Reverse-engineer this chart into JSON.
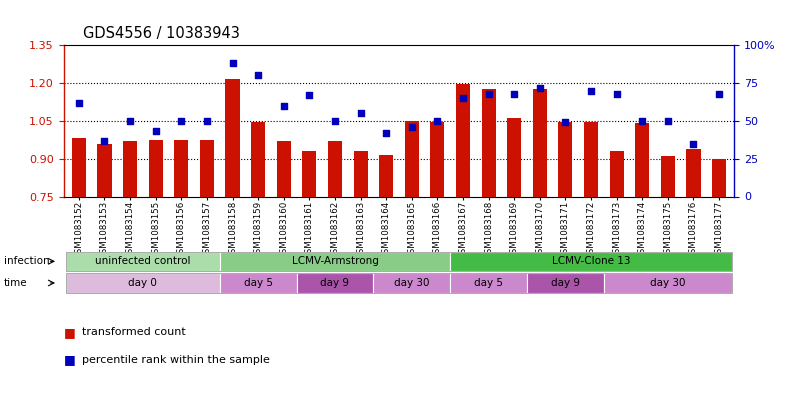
{
  "title": "GDS4556 / 10383943",
  "samples": [
    "GSM1083152",
    "GSM1083153",
    "GSM1083154",
    "GSM1083155",
    "GSM1083156",
    "GSM1083157",
    "GSM1083158",
    "GSM1083159",
    "GSM1083160",
    "GSM1083161",
    "GSM1083162",
    "GSM1083163",
    "GSM1083164",
    "GSM1083165",
    "GSM1083166",
    "GSM1083167",
    "GSM1083168",
    "GSM1083169",
    "GSM1083170",
    "GSM1083171",
    "GSM1083172",
    "GSM1083173",
    "GSM1083174",
    "GSM1083175",
    "GSM1083176",
    "GSM1083177"
  ],
  "bar_values": [
    0.98,
    0.96,
    0.97,
    0.975,
    0.975,
    0.975,
    1.215,
    1.045,
    0.97,
    0.93,
    0.97,
    0.93,
    0.915,
    1.05,
    1.045,
    1.195,
    1.175,
    1.06,
    1.175,
    1.045,
    1.045,
    0.93,
    1.04,
    0.91,
    0.94,
    0.9
  ],
  "percentile_values": [
    62,
    37,
    50,
    43,
    50,
    50,
    88,
    80,
    60,
    67,
    50,
    55,
    42,
    46,
    50,
    65,
    68,
    68,
    72,
    49,
    70,
    68,
    50,
    50,
    35,
    68
  ],
  "ylim_left": [
    0.75,
    1.35
  ],
  "ylim_right": [
    0,
    100
  ],
  "bar_color": "#cc1100",
  "dot_color": "#0000bb",
  "left_yticks": [
    0.75,
    0.9,
    1.05,
    1.2,
    1.35
  ],
  "right_yticks": [
    0,
    25,
    50,
    75,
    100
  ],
  "right_yticklabels": [
    "0",
    "25",
    "50",
    "75",
    "100%"
  ],
  "gridline_values": [
    0.9,
    1.05,
    1.2
  ],
  "infection_groups": [
    {
      "label": "uninfected control",
      "start": 0,
      "end": 6,
      "color": "#aaddaa"
    },
    {
      "label": "LCMV-Armstrong",
      "start": 6,
      "end": 15,
      "color": "#88cc88"
    },
    {
      "label": "LCMV-Clone 13",
      "start": 15,
      "end": 26,
      "color": "#44bb44"
    }
  ],
  "time_groups": [
    {
      "label": "day 0",
      "start": 0,
      "end": 6,
      "color": "#ddbbdd"
    },
    {
      "label": "day 5",
      "start": 6,
      "end": 9,
      "color": "#cc88cc"
    },
    {
      "label": "day 9",
      "start": 9,
      "end": 12,
      "color": "#aa55aa"
    },
    {
      "label": "day 30",
      "start": 12,
      "end": 15,
      "color": "#cc88cc"
    },
    {
      "label": "day 5",
      "start": 15,
      "end": 18,
      "color": "#cc88cc"
    },
    {
      "label": "day 9",
      "start": 18,
      "end": 21,
      "color": "#aa55aa"
    },
    {
      "label": "day 30",
      "start": 21,
      "end": 26,
      "color": "#cc88cc"
    }
  ],
  "legend_bar_label": "transformed count",
  "legend_dot_label": "percentile rank within the sample"
}
